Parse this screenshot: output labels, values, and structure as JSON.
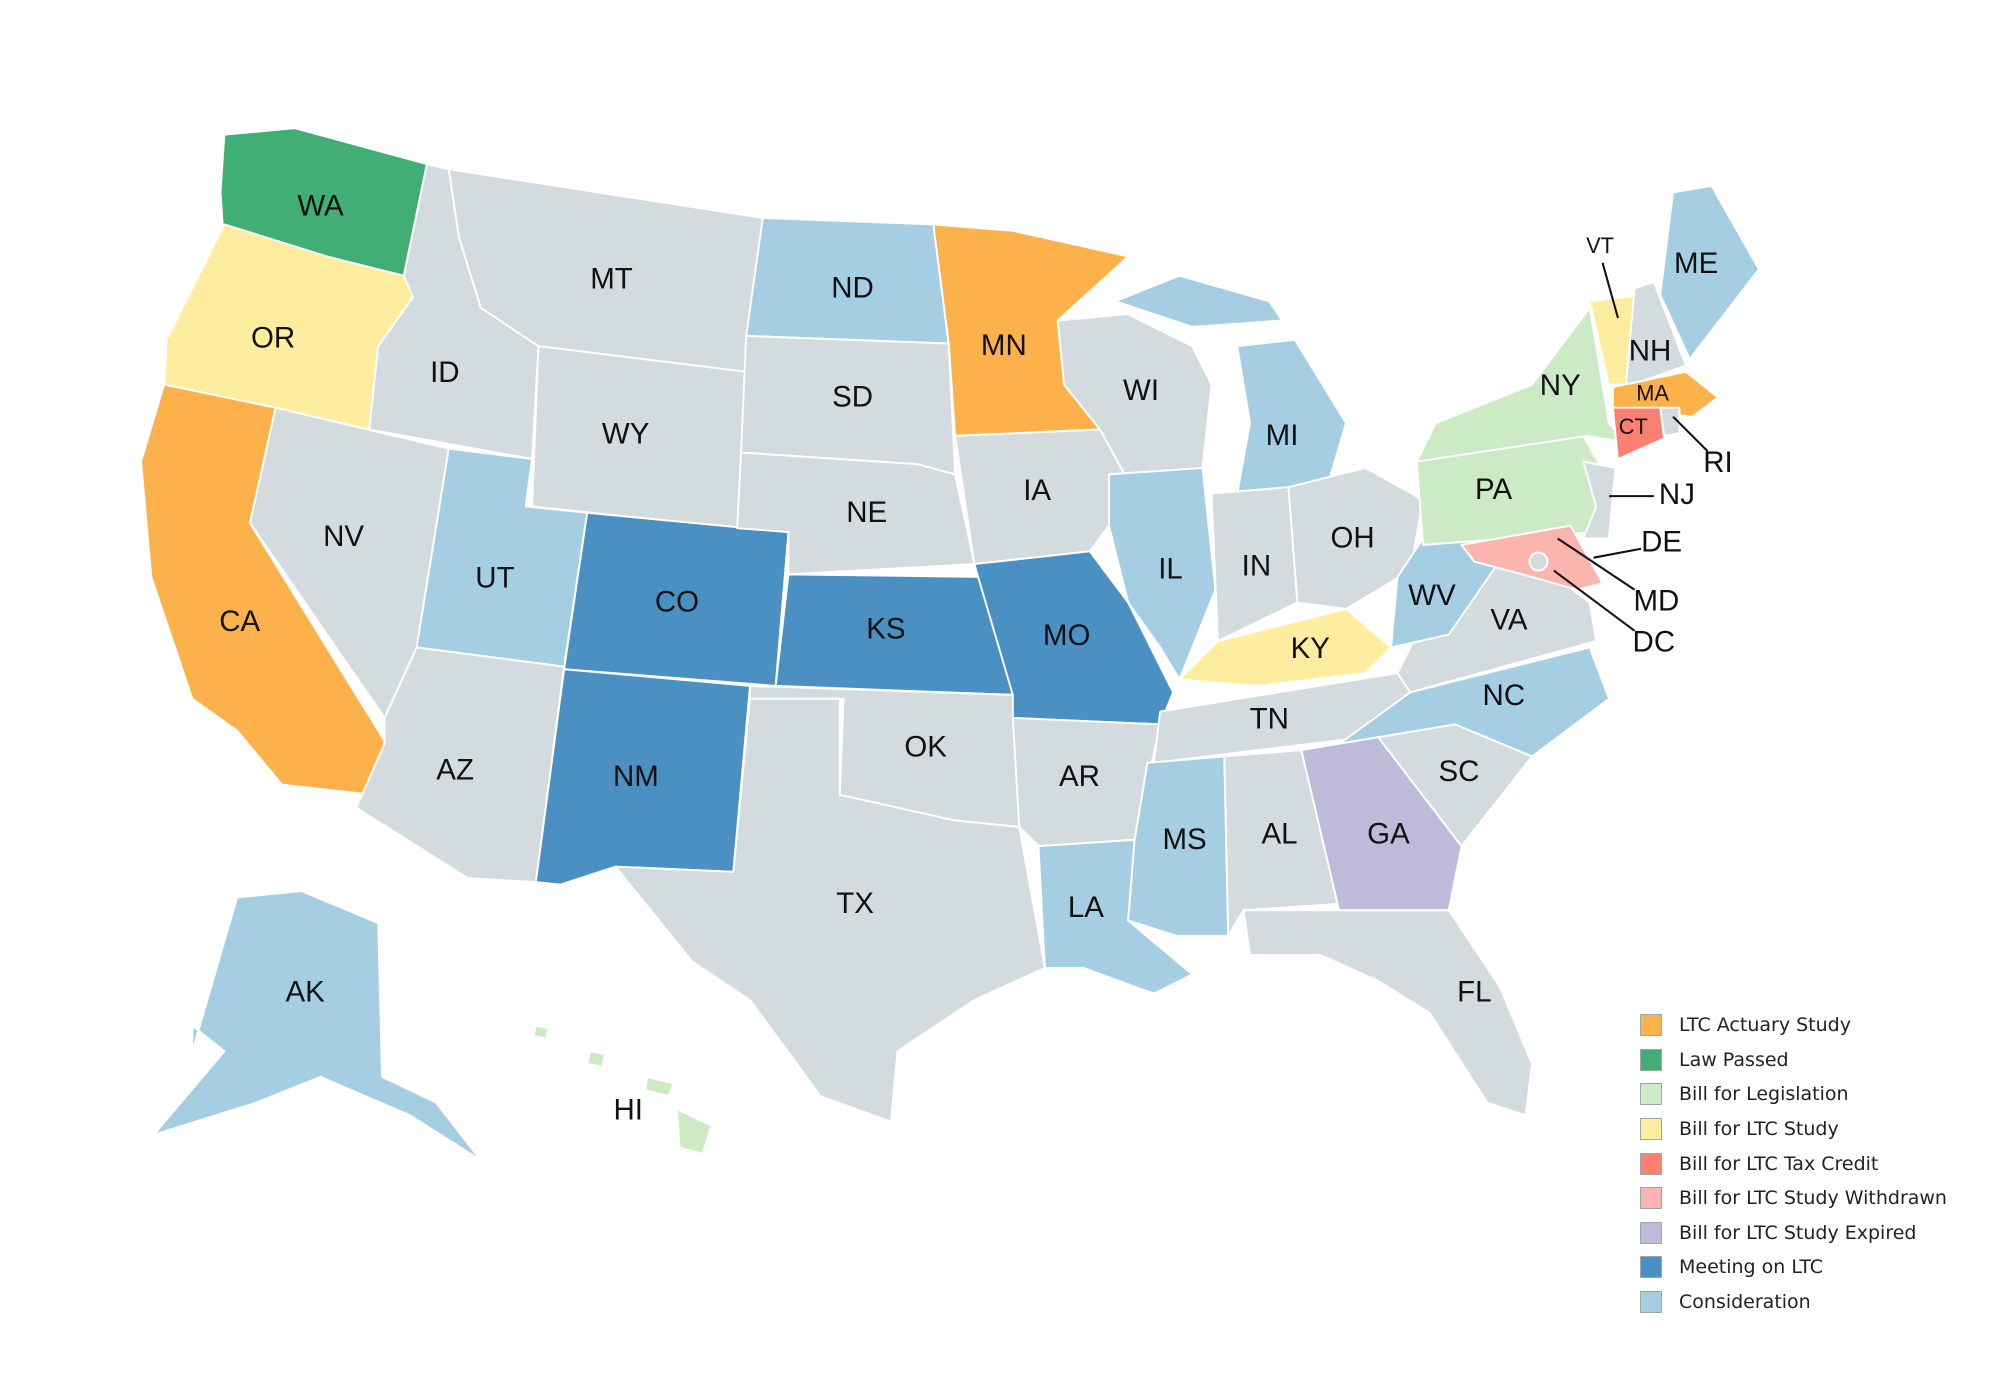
{
  "legend": [
    {
      "key": "actuary",
      "label": "LTC Actuary Study",
      "color": "#FDB14B"
    },
    {
      "key": "law",
      "label": "Law Passed",
      "color": "#41AE76"
    },
    {
      "key": "legislation",
      "label": "Bill for Legislation",
      "color": "#CCEBC5"
    },
    {
      "key": "study",
      "label": "Bill for LTC Study",
      "color": "#FFED9F"
    },
    {
      "key": "taxcredit",
      "label": "Bill for LTC Tax Credit",
      "color": "#FB8072"
    },
    {
      "key": "withdrawn",
      "label": "Bill for LTC Study Withdrawn",
      "color": "#FBB4AE"
    },
    {
      "key": "expired",
      "label": "Bill for LTC Study Expired",
      "color": "#BEBADA"
    },
    {
      "key": "meeting",
      "label": "Meeting on LTC",
      "color": "#4B90C2"
    },
    {
      "key": "consideration",
      "label": "Consideration",
      "color": "#A6CEE3"
    }
  ],
  "default_color": "#D3DBDE",
  "states": [
    {
      "code": "WA",
      "status": "law"
    },
    {
      "code": "OR",
      "status": "study"
    },
    {
      "code": "CA",
      "status": "actuary"
    },
    {
      "code": "NV",
      "status": null
    },
    {
      "code": "ID",
      "status": null
    },
    {
      "code": "MT",
      "status": null
    },
    {
      "code": "WY",
      "status": null
    },
    {
      "code": "UT",
      "status": "consideration"
    },
    {
      "code": "AZ",
      "status": null
    },
    {
      "code": "CO",
      "status": "meeting"
    },
    {
      "code": "NM",
      "status": "meeting"
    },
    {
      "code": "ND",
      "status": "consideration"
    },
    {
      "code": "SD",
      "status": null
    },
    {
      "code": "NE",
      "status": null
    },
    {
      "code": "KS",
      "status": "meeting"
    },
    {
      "code": "OK",
      "status": null
    },
    {
      "code": "TX",
      "status": null
    },
    {
      "code": "MN",
      "status": "actuary"
    },
    {
      "code": "IA",
      "status": null
    },
    {
      "code": "MO",
      "status": "meeting"
    },
    {
      "code": "AR",
      "status": null
    },
    {
      "code": "LA",
      "status": "consideration"
    },
    {
      "code": "WI",
      "status": null
    },
    {
      "code": "IL",
      "status": "consideration"
    },
    {
      "code": "MI",
      "status": "consideration"
    },
    {
      "code": "IN",
      "status": null
    },
    {
      "code": "OH",
      "status": null
    },
    {
      "code": "KY",
      "status": "study"
    },
    {
      "code": "TN",
      "status": null
    },
    {
      "code": "MS",
      "status": "consideration"
    },
    {
      "code": "AL",
      "status": null
    },
    {
      "code": "GA",
      "status": "expired"
    },
    {
      "code": "FL",
      "status": null
    },
    {
      "code": "SC",
      "status": null
    },
    {
      "code": "NC",
      "status": "consideration"
    },
    {
      "code": "VA",
      "status": null
    },
    {
      "code": "WV",
      "status": "consideration"
    },
    {
      "code": "PA",
      "status": "legislation"
    },
    {
      "code": "NY",
      "status": "legislation"
    },
    {
      "code": "VT",
      "status": "study"
    },
    {
      "code": "NH",
      "status": null
    },
    {
      "code": "ME",
      "status": "consideration"
    },
    {
      "code": "MA",
      "status": "actuary"
    },
    {
      "code": "CT",
      "status": "taxcredit"
    },
    {
      "code": "RI",
      "status": null
    },
    {
      "code": "NJ",
      "status": null
    },
    {
      "code": "DE",
      "status": null
    },
    {
      "code": "MD",
      "status": "withdrawn"
    },
    {
      "code": "DC",
      "status": null
    },
    {
      "code": "AK",
      "status": "consideration"
    },
    {
      "code": "HI",
      "status": "legislation"
    }
  ]
}
